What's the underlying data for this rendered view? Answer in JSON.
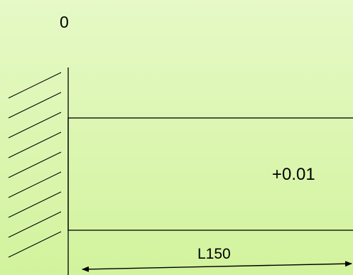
{
  "diagram": {
    "origin_label": "0",
    "value_label": "+0.01",
    "length_label": "L150"
  }
}
